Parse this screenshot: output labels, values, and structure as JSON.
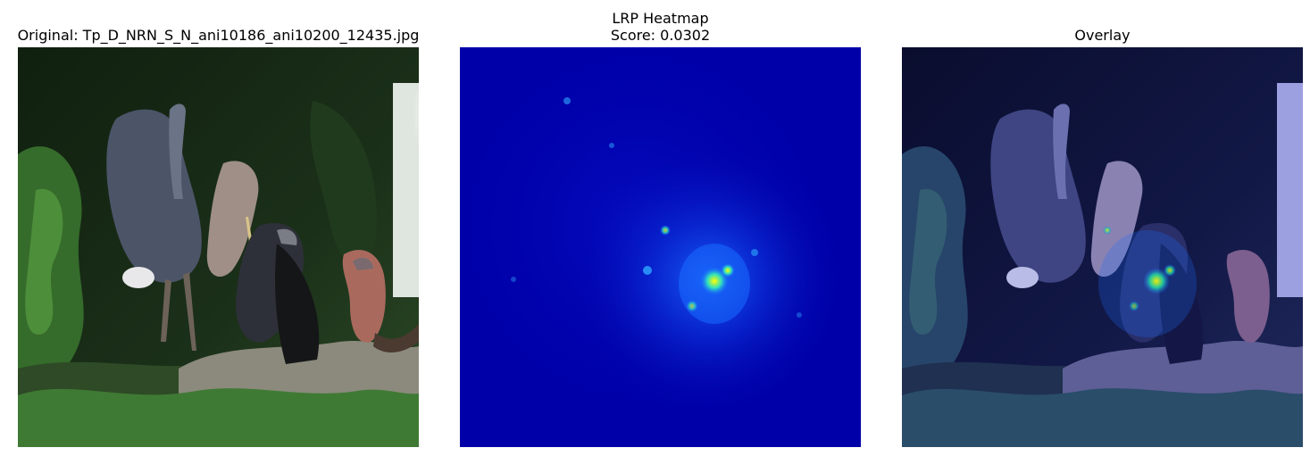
{
  "figure": {
    "panels": [
      {
        "id": "original",
        "title_lines": [
          "Original: Tp_D_NRN_S_N_ani10186_ani10200_12435.jpg"
        ]
      },
      {
        "id": "heatmap",
        "title_lines": [
          "LRP Heatmap",
          "Score: 0.0302"
        ]
      },
      {
        "id": "overlay",
        "title_lines": [
          "Overlay"
        ]
      }
    ]
  },
  "colors": {
    "background": "#ffffff",
    "foliage_dark": "#0f2012",
    "foliage_green": "#3f7a34",
    "heron_gray": "#5b6478",
    "robin_orange": "#a06a5a",
    "heatmap_low": "#0000a8",
    "heatmap_mid": "#1a6bff",
    "heatmap_high": "#ffff00",
    "overlay_tint": "#2b2e8c"
  }
}
